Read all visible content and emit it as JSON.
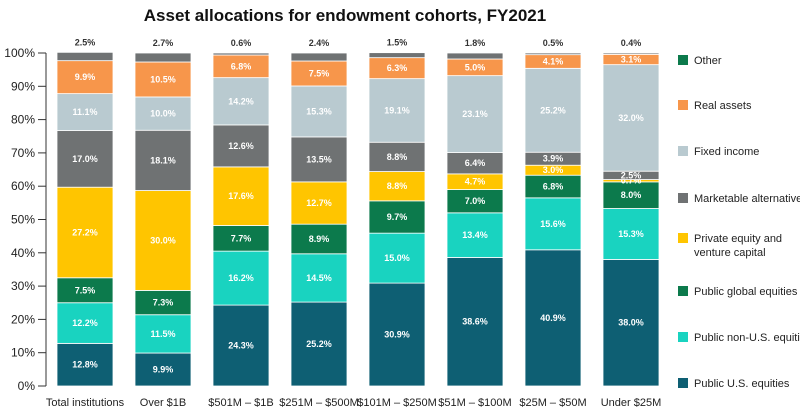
{
  "chart_data": {
    "type": "bar",
    "stacked": true,
    "title": "Asset allocations for endowment cohorts, FY2021",
    "xlabel": "",
    "ylabel": "",
    "ylim": [
      0,
      100
    ],
    "y_ticks": [
      "0%",
      "10%",
      "20%",
      "30%",
      "40%",
      "50%",
      "60%",
      "70%",
      "80%",
      "90%",
      "100%"
    ],
    "grid": false,
    "legend_position": "right",
    "categories": [
      "Total institutions",
      "Over $1B",
      "$501M – $1B",
      "$251M – $500M",
      "$101M – $250M",
      "$51M – $100M",
      "$25M – $50M",
      "Under $25M"
    ],
    "series": [
      {
        "name": "Public U.S. equities",
        "color": "#0e5f73",
        "label_color": "#ffffff",
        "values": [
          12.8,
          9.9,
          24.3,
          25.2,
          30.9,
          38.6,
          40.9,
          38.0
        ],
        "labels": [
          "12.8%",
          "9.9%",
          "24.3%",
          "25.2%",
          "30.9%",
          "38.6%",
          "40.9%",
          "38.0%"
        ]
      },
      {
        "name": "Public non-U.S. equities",
        "color": "#19d3c0",
        "label_color": "#ffffff",
        "values": [
          12.2,
          11.5,
          16.2,
          14.5,
          15.0,
          13.4,
          15.6,
          15.3
        ],
        "labels": [
          "12.2%",
          "11.5%",
          "16.2%",
          "14.5%",
          "15.0%",
          "13.4%",
          "15.6%",
          "15.3%"
        ]
      },
      {
        "name": "Public global equities",
        "color": "#0c7a4c",
        "label_color": "#ffffff",
        "values": [
          7.5,
          7.3,
          7.7,
          8.9,
          9.7,
          7.0,
          6.8,
          8.0
        ],
        "labels": [
          "7.5%",
          "7.3%",
          "7.7%",
          "8.9%",
          "9.7%",
          "7.0%",
          "6.8%",
          "8.0%"
        ]
      },
      {
        "name": "Private equity and venture capital",
        "color": "#ffc500",
        "label_color": "#ffffff",
        "values": [
          27.2,
          30.0,
          17.6,
          12.7,
          8.8,
          4.7,
          3.0,
          0.7
        ],
        "labels": [
          "27.2%",
          "30.0%",
          "17.6%",
          "12.7%",
          "8.8%",
          "4.7%",
          "3.0%",
          "0.7%"
        ]
      },
      {
        "name": "Marketable alternatives",
        "color": "#6f7273",
        "label_color": "#ffffff",
        "values": [
          17.0,
          18.1,
          12.6,
          13.5,
          8.8,
          6.4,
          3.9,
          2.5
        ],
        "labels": [
          "17.0%",
          "18.1%",
          "12.6%",
          "13.5%",
          "8.8%",
          "6.4%",
          "3.9%",
          "2.5%"
        ]
      },
      {
        "name": "Fixed income",
        "color": "#b9cad0",
        "label_color": "#ffffff",
        "values": [
          11.1,
          10.0,
          14.2,
          15.3,
          19.1,
          23.1,
          25.2,
          32.0
        ],
        "labels": [
          "11.1%",
          "10.0%",
          "14.2%",
          "15.3%",
          "19.1%",
          "23.1%",
          "25.2%",
          "32.0%"
        ]
      },
      {
        "name": "Real assets",
        "color": "#f7964b",
        "label_color": "#ffffff",
        "values": [
          9.9,
          10.5,
          6.8,
          7.5,
          6.3,
          5.0,
          4.1,
          3.1
        ],
        "labels": [
          "9.9%",
          "10.5%",
          "6.8%",
          "7.5%",
          "6.3%",
          "5.0%",
          "4.1%",
          "3.1%"
        ]
      },
      {
        "name": "Other",
        "color": "#6f7273",
        "label_color": "#333333",
        "values": [
          2.5,
          2.7,
          0.6,
          2.4,
          1.5,
          1.8,
          0.5,
          0.4
        ],
        "labels": [
          "2.5%",
          "2.7%",
          "0.6%",
          "2.4%",
          "1.5%",
          "1.8%",
          "0.5%",
          "0.4%"
        ]
      }
    ],
    "legend": [
      {
        "name": "Other",
        "color": "#0c7a4c"
      },
      {
        "name": "Real assets",
        "color": "#f7964b"
      },
      {
        "name": "Fixed income",
        "color": "#b9cad0"
      },
      {
        "name": "Marketable alternatives",
        "color": "#6f7273"
      },
      {
        "name": "Private equity and venture capital",
        "color": "#ffc500"
      },
      {
        "name": "Public global equities",
        "color": "#0c7a4c"
      },
      {
        "name": "Public non-U.S. equities",
        "color": "#19d3c0"
      },
      {
        "name": "Public U.S. equities",
        "color": "#0e5f73"
      }
    ]
  }
}
